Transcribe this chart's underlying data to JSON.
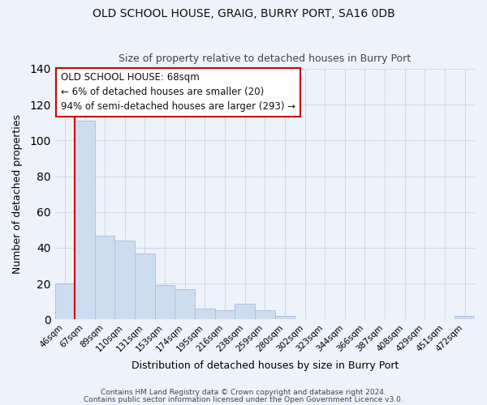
{
  "title": "OLD SCHOOL HOUSE, GRAIG, BURRY PORT, SA16 0DB",
  "subtitle": "Size of property relative to detached houses in Burry Port",
  "xlabel": "Distribution of detached houses by size in Burry Port",
  "ylabel": "Number of detached properties",
  "bar_labels": [
    "46sqm",
    "67sqm",
    "89sqm",
    "110sqm",
    "131sqm",
    "153sqm",
    "174sqm",
    "195sqm",
    "216sqm",
    "238sqm",
    "259sqm",
    "280sqm",
    "302sqm",
    "323sqm",
    "344sqm",
    "366sqm",
    "387sqm",
    "408sqm",
    "429sqm",
    "451sqm",
    "472sqm"
  ],
  "bar_heights": [
    20,
    111,
    47,
    44,
    37,
    19,
    17,
    6,
    5,
    9,
    5,
    2,
    0,
    0,
    0,
    0,
    0,
    0,
    0,
    0,
    2
  ],
  "bar_color": "#ccddf0",
  "bar_edge_color": "#aabbdd",
  "vline_color": "#cc0000",
  "annotation_title": "OLD SCHOOL HOUSE: 68sqm",
  "annotation_line1": "← 6% of detached houses are smaller (20)",
  "annotation_line2": "94% of semi-detached houses are larger (293) →",
  "annotation_box_color": "#cc0000",
  "ylim": [
    0,
    140
  ],
  "yticks": [
    0,
    20,
    40,
    60,
    80,
    100,
    120,
    140
  ],
  "footer1": "Contains HM Land Registry data © Crown copyright and database right 2024.",
  "footer2": "Contains public sector information licensed under the Open Government Licence v3.0.",
  "background_color": "#eef2fa",
  "grid_color": "#d0d8ea"
}
